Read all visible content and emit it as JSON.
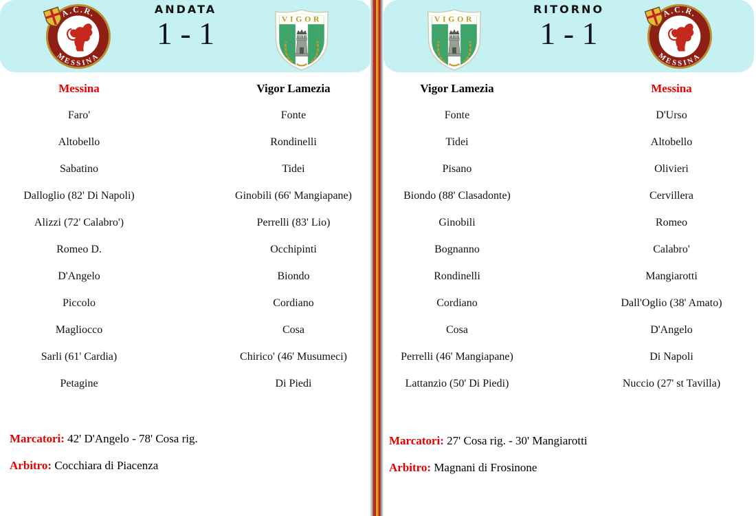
{
  "page_title": "Andata e Ritorno - Messina / Vigor Lamezia",
  "colors": {
    "header_band": "#c6f1f3",
    "accent_red": "#ee0000",
    "label_red": "#e30000",
    "stripe_red": "#c5291e",
    "stripe_yellow": "#d8a31f",
    "messina_maroon": "#8e1f14",
    "crest_gold": "#c09a30",
    "vigor_green": "#3fa46a"
  },
  "logos": {
    "messina": {
      "top_text": "A.C.R.",
      "bottom_text": "MESSINA"
    },
    "vigor": {
      "name": "VIGOR"
    }
  },
  "matches": [
    {
      "title": "ANDATA",
      "score": "1 - 1",
      "columns": [
        {
          "team": "Messina",
          "players": [
            "Faro'",
            "Altobello",
            "Sabatino",
            "Dalloglio (82' Di Napoli)",
            "Alizzi (72' Calabro')",
            "Romeo D.",
            "D'Angelo",
            "Piccolo",
            "Magliocco",
            "Sarli (61' Cardia)",
            "Petagine"
          ]
        },
        {
          "team": "Vigor Lamezia",
          "players": [
            "Fonte",
            "Rondinelli",
            "Tidei",
            "Ginobili (66' Mangiapane)",
            "Perrelli (83' Lio)",
            "Occhipinti",
            "Biondo",
            "Cordiano",
            "Cosa",
            "Chirico' (46' Musumeci)",
            "Di Piedi"
          ]
        }
      ],
      "marcatori_label": "Marcatori:",
      "marcatori": "42' D'Angelo - 78' Cosa rig.",
      "arbitro_label": "Arbitro:",
      "arbitro": "Cocchiara di Piacenza"
    },
    {
      "title": "RITORNO",
      "score": "1 - 1",
      "columns": [
        {
          "team": "Vigor Lamezia",
          "players": [
            "Fonte",
            "Tidei",
            "Pisano",
            "Biondo (88' Clasadonte)",
            "Ginobili",
            "Bognanno",
            "Rondinelli",
            "Cordiano",
            "Cosa",
            "Perrelli (46' Mangiapane)",
            "Lattanzio (50' Di Piedi)"
          ]
        },
        {
          "team": "Messina",
          "players": [
            "D'Urso",
            "Altobello",
            "Olivieri",
            "Cervillera",
            "Romeo",
            "Calabro'",
            "Mangiarotti",
            "Dall'Oglio (38' Amato)",
            "D'Angelo",
            "Di Napoli",
            "Nuccio (27' st Tavilla)"
          ]
        }
      ],
      "marcatori_label": "Marcatori:",
      "marcatori": "27' Cosa rig. - 30' Mangiarotti",
      "arbitro_label": "Arbitro:",
      "arbitro": "Magnani di Frosinone"
    }
  ]
}
